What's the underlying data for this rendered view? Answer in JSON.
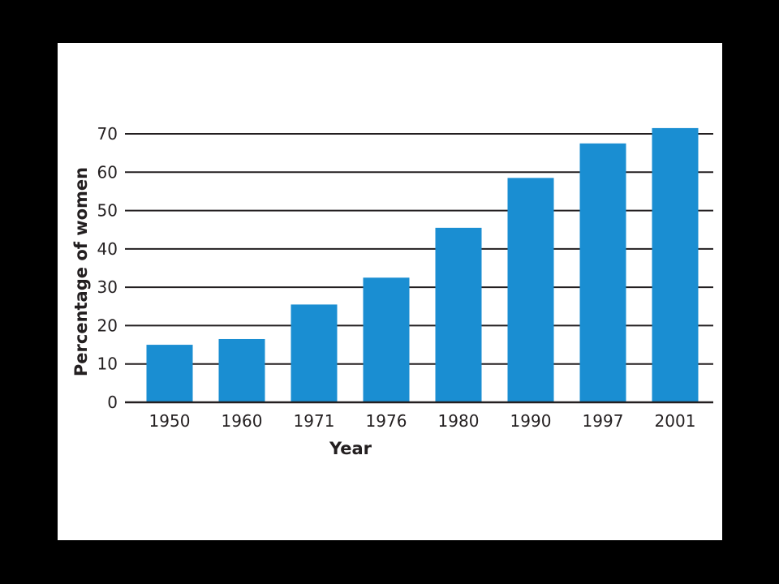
{
  "colors": {
    "background": "#000000",
    "panel": "#ffffff",
    "bar": "#1a8ed2",
    "gridline": "#231f20",
    "text": "#231f20"
  },
  "chart_data": {
    "type": "bar",
    "xlabel": "Year",
    "ylabel": "Percentage of women",
    "categories": [
      "1950",
      "1960",
      "1971",
      "1976",
      "1980",
      "1990",
      "1997",
      "2001"
    ],
    "values": [
      15,
      16.5,
      25.5,
      32.5,
      45.5,
      58.5,
      67.5,
      71.5
    ],
    "ylim": [
      0,
      70
    ],
    "yticks": [
      0,
      10,
      20,
      30,
      40,
      50,
      60,
      70
    ],
    "grid": true
  }
}
